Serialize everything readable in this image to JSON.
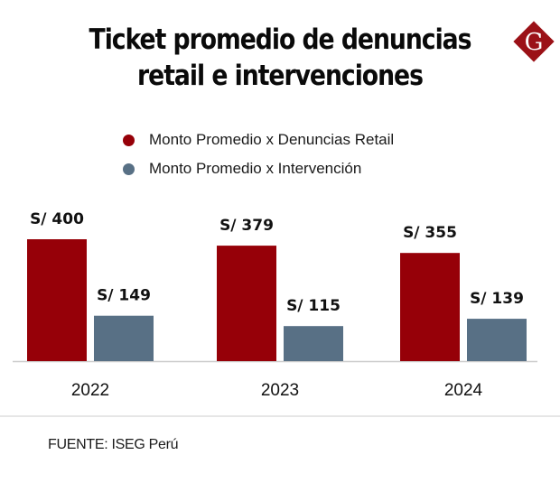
{
  "header": {
    "title_line1": "Ticket promedio de denuncias",
    "title_line2": "retail e intervenciones",
    "logo_letter": "G"
  },
  "colors": {
    "retail": "#960008",
    "intervencion": "#587085",
    "logo": "#9b1117",
    "axis": "#cccccc"
  },
  "source": "FUENTE: ISEG Perú",
  "chart_data": {
    "type": "bar",
    "title": "Ticket promedio de denuncias retail e intervenciones",
    "xlabel": "",
    "ylabel": "",
    "categories": [
      "2022",
      "2023",
      "2024"
    ],
    "series": [
      {
        "name": "Monto Promedio x Denuncias Retail",
        "color": "#960008",
        "values": [
          400,
          379,
          355
        ],
        "labels": [
          "S/ 400",
          "S/ 379",
          "S/ 355"
        ]
      },
      {
        "name": "Monto Promedio x Intervención",
        "color": "#587085",
        "values": [
          149,
          115,
          139
        ],
        "labels": [
          "S/ 149",
          "S/ 115",
          "S/ 139"
        ]
      }
    ],
    "ylim": [
      0,
      400
    ],
    "grid": false,
    "legend_position": "top-left",
    "value_prefix": "S/ "
  }
}
